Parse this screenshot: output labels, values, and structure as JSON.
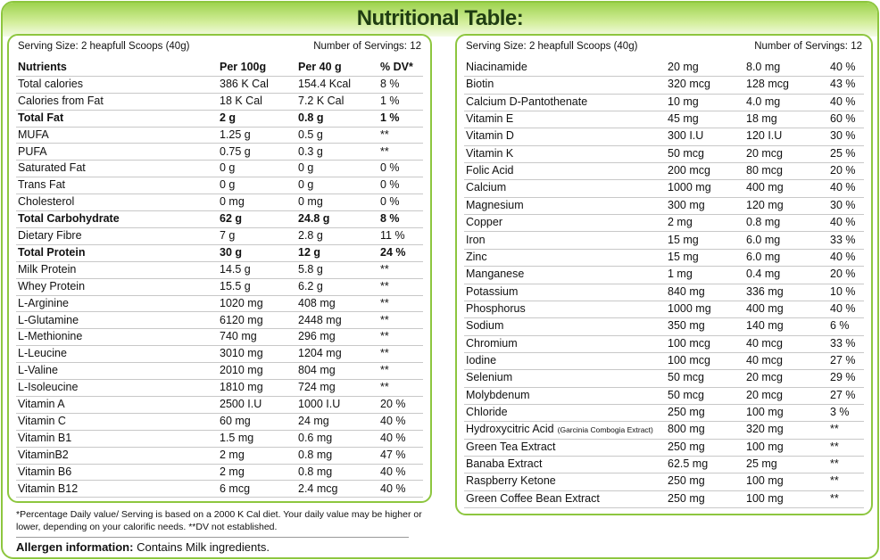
{
  "title": "Nutritional Table:",
  "left": {
    "serving_size": "Serving Size: 2 heapfull Scoops (40g)",
    "servings": "Number of Servings: 12",
    "header": [
      "Nutrients",
      "Per 100g",
      "Per 40 g",
      "% DV*"
    ],
    "rows": [
      [
        "Total calories",
        "386 K Cal",
        "154.4 Kcal",
        "8 %"
      ],
      [
        "Calories from Fat",
        "18 K Cal",
        "7.2 K Cal",
        "1 %"
      ],
      [
        "Total Fat",
        "2 g",
        "0.8 g",
        "1 %"
      ],
      [
        "MUFA",
        "1.25 g",
        "0.5 g",
        "**"
      ],
      [
        "PUFA",
        "0.75 g",
        "0.3 g",
        "**"
      ],
      [
        "Saturated Fat",
        "0 g",
        "0 g",
        "0 %"
      ],
      [
        "Trans Fat",
        "0 g",
        "0 g",
        "0 %"
      ],
      [
        "Cholesterol",
        "0 mg",
        "0 mg",
        "0 %"
      ],
      [
        "Total Carbohydrate",
        "62 g",
        "24.8 g",
        "8 %"
      ],
      [
        "Dietary Fibre",
        "7 g",
        "2.8 g",
        "11 %"
      ],
      [
        "Total Protein",
        "30 g",
        "12 g",
        "24 %"
      ],
      [
        "Milk Protein",
        "14.5 g",
        "5.8 g",
        "**"
      ],
      [
        "Whey Protein",
        "15.5 g",
        "6.2 g",
        "**"
      ],
      [
        "L-Arginine",
        "1020 mg",
        "408 mg",
        "**"
      ],
      [
        "L-Glutamine",
        "6120 mg",
        "2448 mg",
        "**"
      ],
      [
        "L-Methionine",
        "740 mg",
        "296 mg",
        "**"
      ],
      [
        "L-Leucine",
        "3010 mg",
        "1204 mg",
        "**"
      ],
      [
        "L-Valine",
        "2010 mg",
        "804 mg",
        "**"
      ],
      [
        "L-Isoleucine",
        "1810 mg",
        "724 mg",
        "**"
      ],
      [
        "Vitamin A",
        "2500 I.U",
        "1000 I.U",
        "20 %"
      ],
      [
        "Vitamin C",
        "60 mg",
        "24 mg",
        "40 %"
      ],
      [
        "Vitamin B1",
        "1.5 mg",
        "0.6 mg",
        "40 %"
      ],
      [
        "VitaminB2",
        "2 mg",
        "0.8 mg",
        "47 %"
      ],
      [
        "Vitamin B6",
        "2 mg",
        "0.8 mg",
        "40 %"
      ],
      [
        "Vitamin B12",
        "6 mcg",
        "2.4 mcg",
        "40 %"
      ]
    ]
  },
  "right": {
    "serving_size": "Serving Size: 2 heapfull Scoops (40g)",
    "servings": "Number of Servings: 12",
    "rows": [
      [
        "Niacinamide",
        "20 mg",
        "8.0 mg",
        "40 %"
      ],
      [
        "Biotin",
        "320 mcg",
        "128 mcg",
        "43 %"
      ],
      [
        "Calcium D-Pantothenate",
        "10 mg",
        "4.0 mg",
        "40 %"
      ],
      [
        "Vitamin E",
        "45 mg",
        "18 mg",
        "60 %"
      ],
      [
        "Vitamin D",
        "300 I.U",
        "120 I.U",
        "30 %"
      ],
      [
        "Vitamin K",
        "50 mcg",
        "20 mcg",
        "25 %"
      ],
      [
        "Folic Acid",
        "200 mcg",
        "80 mcg",
        "20 %"
      ],
      [
        "Calcium",
        "1000 mg",
        "400 mg",
        "40 %"
      ],
      [
        "Magnesium",
        "300 mg",
        "120 mg",
        "30 %"
      ],
      [
        "Copper",
        "2 mg",
        "0.8 mg",
        "40 %"
      ],
      [
        "Iron",
        "15 mg",
        "6.0 mg",
        "33 %"
      ],
      [
        "Zinc",
        "15 mg",
        "6.0 mg",
        "40 %"
      ],
      [
        "Manganese",
        "1 mg",
        "0.4 mg",
        "20 %"
      ],
      [
        "Potassium",
        "840 mg",
        "336 mg",
        "10 %"
      ],
      [
        "Phosphorus",
        "1000 mg",
        "400 mg",
        "40 %"
      ],
      [
        "Sodium",
        "350 mg",
        "140 mg",
        "6 %"
      ],
      [
        "Chromium",
        "100 mcg",
        "40 mcg",
        "33 %"
      ],
      [
        "Iodine",
        "100 mcg",
        "40 mcg",
        "27 %"
      ],
      [
        "Selenium",
        "50 mcg",
        "20 mcg",
        "29 %"
      ],
      [
        "Molybdenum",
        "50 mcg",
        "20 mcg",
        "27 %"
      ],
      [
        "Chloride",
        "250 mg",
        "100 mg",
        "3 %"
      ],
      [
        [
          "Hydroxycitric Acid",
          "(Garcinia Combogia Extract)"
        ],
        "800 mg",
        "320 mg",
        "**"
      ],
      [
        "Green Tea Extract",
        "250 mg",
        "100 mg",
        "**"
      ],
      [
        "Banaba Extract",
        "62.5 mg",
        "25 mg",
        "**"
      ],
      [
        "Raspberry Ketone",
        "250 mg",
        "100 mg",
        "**"
      ],
      [
        "Green Coffee Bean Extract",
        "250 mg",
        "100 mg",
        "**"
      ]
    ]
  },
  "footnote": "*Percentage Daily value/ Serving is based on a 2000 K Cal diet. Your daily value may be higher or lower, depending on your calorific needs.   **DV not established.",
  "allergen": {
    "label": "Allergen information:",
    "text": "Contains Milk ingredients."
  }
}
